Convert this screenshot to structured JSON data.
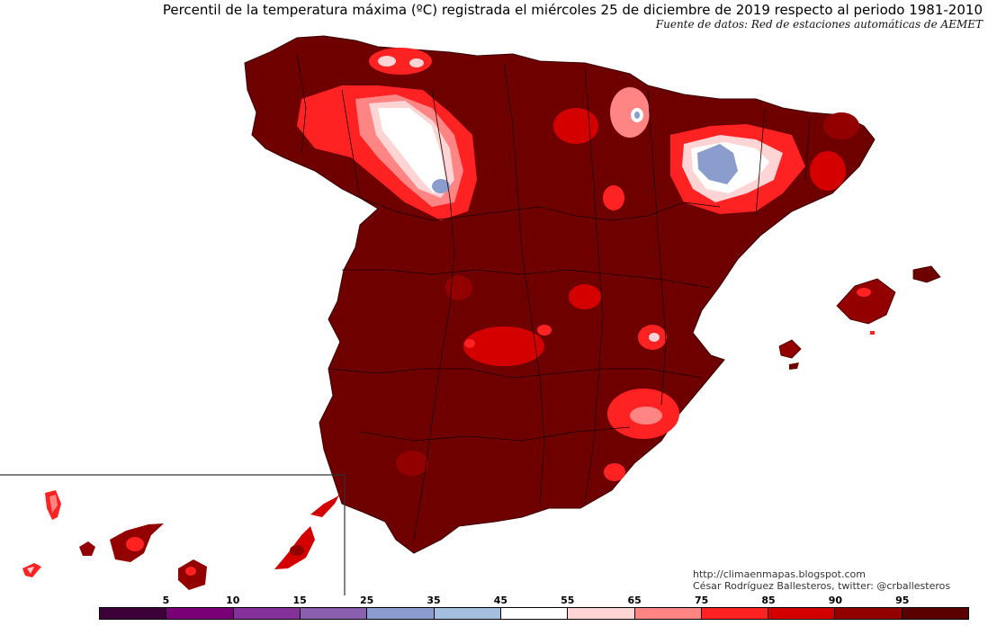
{
  "header": {
    "title": "Percentil de la temperatura máxima (ºC) registrada el miércoles 25 de diciembre de 2019 respecto al periodo 1981-2010",
    "subtitle": "Fuente de datos: Red de estaciones automáticas de AEMET"
  },
  "credits": {
    "url": "http://climaenmapas.blogspot.com",
    "author": "César Rodríguez Ballesteros, twitter: @crballesteros"
  },
  "legend": {
    "labels": [
      "5",
      "10",
      "15",
      "25",
      "35",
      "45",
      "55",
      "65",
      "75",
      "85",
      "90",
      "95"
    ],
    "colors": [
      "#3d0039",
      "#7a0077",
      "#84329a",
      "#8a5fad",
      "#8b9dcc",
      "#a3bfdd",
      "#ffffff",
      "#ffd4d4",
      "#ff8585",
      "#ff2222",
      "#d40000",
      "#930000",
      "#5a0000"
    ]
  },
  "palette": {
    "background_percentile_color": "#6e0000",
    "high": "#930000",
    "mid_red": "#ff2222",
    "light": "#ffd4d4",
    "cool": "#8b9dcc"
  }
}
